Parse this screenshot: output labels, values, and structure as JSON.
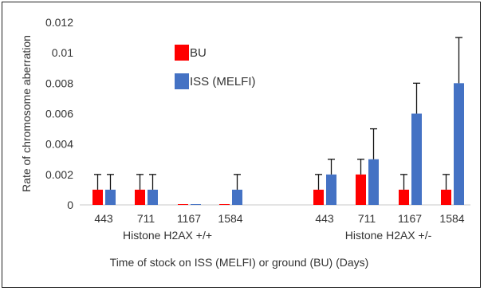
{
  "chart_data": {
    "type": "bar",
    "ylabel": "Rate of chromosome aberration",
    "xlabel": "Time of stock on ISS (MELFI) or ground (BU) (Days)",
    "ylim": [
      0,
      0.012
    ],
    "yticks": [
      "0",
      "0.002",
      "0.004",
      "0.006",
      "0.008",
      "0.01",
      "0.012"
    ],
    "groups": [
      {
        "label": "Histone H2AX +/+",
        "categories": [
          "443",
          "711",
          "1167",
          "1584"
        ]
      },
      {
        "label": "Histone H2AX +/-",
        "categories": [
          "443",
          "711",
          "1167",
          "1584"
        ]
      }
    ],
    "series": [
      {
        "name": "BU",
        "color": "#ff0000",
        "values": [
          0.001,
          0.001,
          5e-05,
          5e-05,
          0.001,
          0.002,
          0.001,
          0.001
        ],
        "error_upper": [
          0.002,
          0.002,
          0.0,
          0.0,
          0.002,
          0.003,
          0.002,
          0.002
        ]
      },
      {
        "name": "ISS (MELFI)",
        "color": "#4472c4",
        "values": [
          0.001,
          0.001,
          5e-05,
          0.001,
          0.002,
          0.003,
          0.006,
          0.008
        ],
        "error_upper": [
          0.002,
          0.002,
          0.0,
          0.002,
          0.003,
          0.005,
          0.008,
          0.011
        ]
      }
    ],
    "legend_position": "top-center",
    "grid": false
  }
}
